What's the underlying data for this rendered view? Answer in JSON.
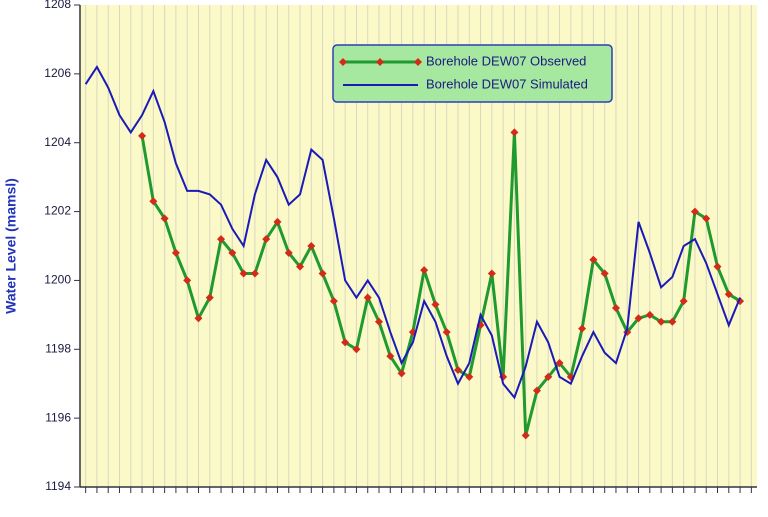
{
  "chart_data": {
    "type": "line",
    "y_label": "Water Level (mamsl)",
    "categories": [
      null,
      null,
      null,
      null,
      null,
      null,
      null,
      null,
      null,
      null,
      null,
      null,
      null,
      null,
      null,
      null,
      null,
      null,
      null,
      null,
      null,
      null,
      null,
      null,
      null,
      null,
      null,
      null,
      null,
      null,
      null,
      null,
      null,
      null,
      null,
      null,
      null,
      null,
      null,
      null,
      null,
      null,
      null,
      null,
      null,
      null,
      null,
      null,
      null,
      null,
      null,
      null,
      null,
      null,
      null,
      null,
      null,
      null,
      null,
      null
    ],
    "series": [
      {
        "name": "Borehole DEW07 Observed",
        "color": "#1f9a2e",
        "marker_color": "#d42a1a",
        "values": [
          null,
          null,
          null,
          null,
          null,
          1204.2,
          1202.3,
          1201.8,
          1200.8,
          1200.0,
          1198.9,
          1199.5,
          1201.2,
          1200.8,
          1200.2,
          1200.2,
          1201.2,
          1201.7,
          1200.8,
          1200.4,
          1201.0,
          1200.2,
          1199.4,
          1198.2,
          1198.0,
          1199.5,
          1198.8,
          1197.8,
          1197.3,
          1198.5,
          1200.3,
          1199.3,
          1198.5,
          1197.4,
          1197.2,
          1198.7,
          1200.2,
          1197.2,
          1204.3,
          1195.5,
          1196.8,
          1197.2,
          1197.6,
          1197.2,
          1198.6,
          1200.6,
          1200.2,
          1199.2,
          1198.5,
          1198.9,
          1199.0,
          1198.8,
          1198.8,
          1199.4,
          1202.0,
          1201.8,
          1200.4,
          1199.6,
          1199.4,
          null
        ]
      },
      {
        "name": "Borehole DEW07 Simulated",
        "color": "#1a1ab8",
        "values": [
          1205.7,
          1206.2,
          1205.6,
          1204.8,
          1204.3,
          1204.8,
          1205.5,
          1204.6,
          1203.4,
          1202.6,
          1202.6,
          1202.5,
          1202.2,
          1201.5,
          1201.0,
          1202.5,
          1203.5,
          1203.0,
          1202.2,
          1202.5,
          1203.8,
          1203.5,
          1201.8,
          1200.0,
          1199.5,
          1200.0,
          1199.5,
          1198.5,
          1197.6,
          1198.2,
          1199.4,
          1198.8,
          1197.8,
          1197.0,
          1197.6,
          1199.0,
          1198.4,
          1197.0,
          1196.6,
          1197.5,
          1198.8,
          1198.2,
          1197.2,
          1197.0,
          1197.8,
          1198.5,
          1197.9,
          1197.6,
          1198.6,
          1201.7,
          1200.8,
          1199.8,
          1200.1,
          1201.0,
          1201.2,
          1200.5,
          1199.6,
          1198.7,
          1199.5,
          null
        ]
      }
    ],
    "ylim": [
      1194,
      1208
    ],
    "yticks": [
      1194,
      1196,
      1198,
      1200,
      1202,
      1204,
      1206,
      1208
    ],
    "grid": true,
    "background": "#fbf9c8"
  }
}
